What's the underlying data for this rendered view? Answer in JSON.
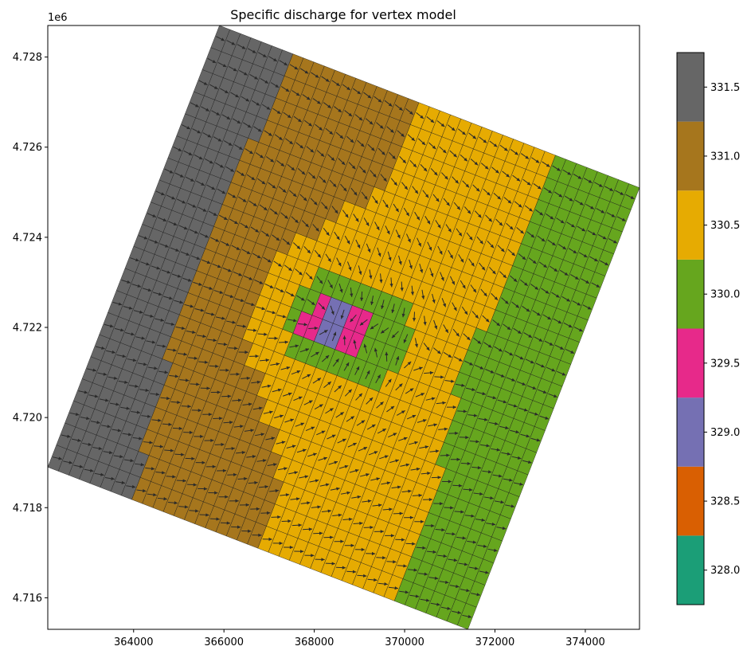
{
  "chart_data": {
    "type": "heatmap",
    "title": "Specific discharge for vertex model",
    "xlim": [
      362100,
      375200
    ],
    "ylim": [
      4715300,
      4728700
    ],
    "y_offset_label": "1e6",
    "x_ticks": [
      364000,
      366000,
      368000,
      370000,
      372000,
      374000
    ],
    "x_tick_labels": [
      "364000",
      "366000",
      "368000",
      "370000",
      "372000",
      "374000"
    ],
    "y_ticks": [
      4716000,
      4718000,
      4720000,
      4722000,
      4724000,
      4726000,
      4728000
    ],
    "y_tick_labels": [
      "4.716",
      "4.718",
      "4.720",
      "4.722",
      "4.724",
      "4.726",
      "4.728"
    ],
    "grid": false,
    "model_domain": {
      "corners": [
        [
          365900,
          4728700
        ],
        [
          375200,
          4725100
        ],
        [
          371450,
          4715500
        ],
        [
          362100,
          4718900
        ]
      ],
      "rows": 40,
      "cols": 20
    },
    "well_location": [
      368350,
      4722100
    ],
    "colorbar": {
      "range": [
        327.75,
        331.75
      ],
      "ticks": [
        328.0,
        328.5,
        329.0,
        329.5,
        330.0,
        330.5,
        331.0,
        331.5
      ],
      "tick_labels": [
        "328.0",
        "328.5",
        "329.0",
        "329.5",
        "330.0",
        "330.5",
        "331.0",
        "331.5"
      ],
      "bins": [
        {
          "min": 327.75,
          "max": 328.25,
          "color": "#1b9e77"
        },
        {
          "min": 328.25,
          "max": 328.75,
          "color": "#d95f02"
        },
        {
          "min": 328.75,
          "max": 329.25,
          "color": "#7570b3"
        },
        {
          "min": 329.25,
          "max": 329.75,
          "color": "#e7298a"
        },
        {
          "min": 329.75,
          "max": 330.25,
          "color": "#66a61e"
        },
        {
          "min": 330.25,
          "max": 330.75,
          "color": "#e6ab02"
        },
        {
          "min": 330.75,
          "max": 331.25,
          "color": "#a6761d"
        },
        {
          "min": 331.25,
          "max": 331.75,
          "color": "#666666"
        }
      ]
    }
  }
}
